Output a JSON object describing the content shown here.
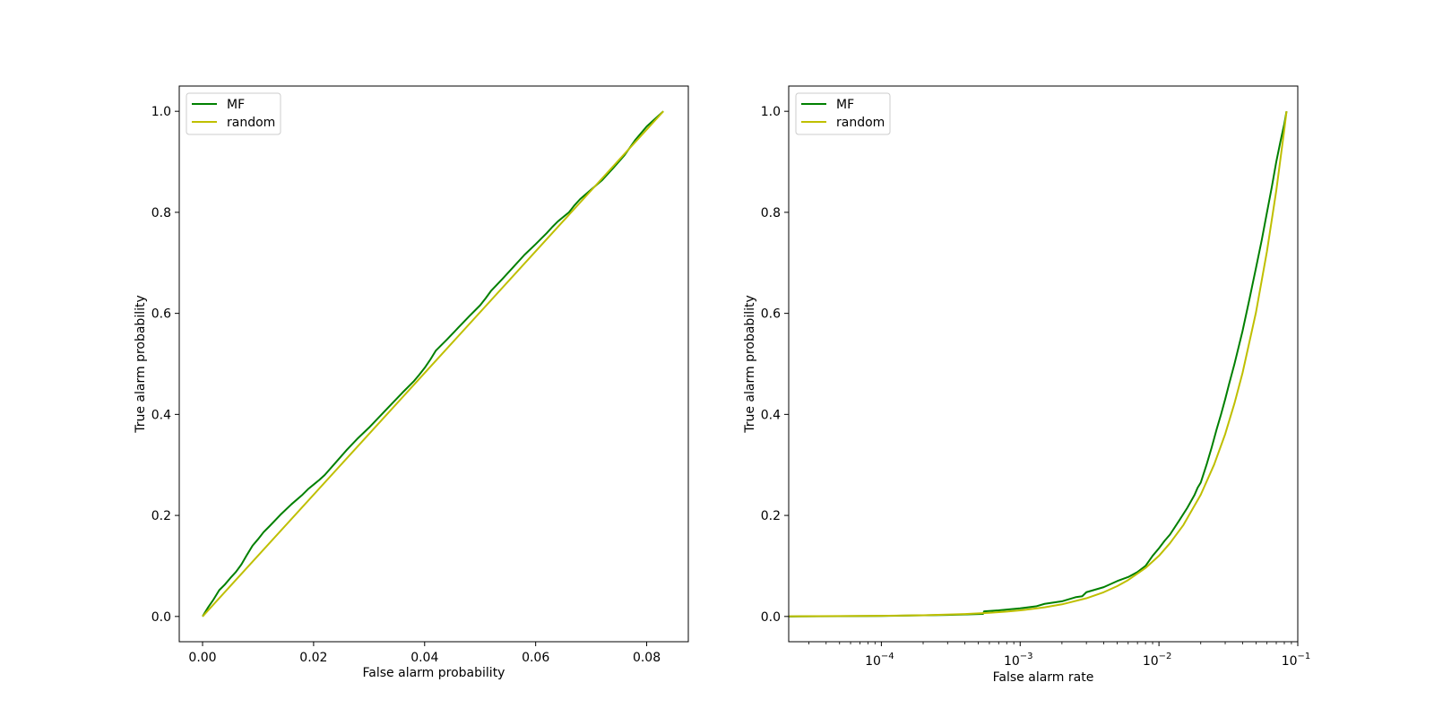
{
  "chart_data": [
    {
      "type": "line",
      "xlabel": "False alarm probability",
      "ylabel": "True alarm probability",
      "xscale": "linear",
      "xlim": [
        -0.0042,
        0.0875
      ],
      "ylim": [
        -0.05,
        1.05
      ],
      "xticks": [
        0.0,
        0.02,
        0.04,
        0.06,
        0.08
      ],
      "xtick_labels": [
        "0.00",
        "0.02",
        "0.04",
        "0.06",
        "0.08"
      ],
      "yticks": [
        0.0,
        0.2,
        0.4,
        0.6,
        0.8,
        1.0
      ],
      "ytick_labels": [
        "0.0",
        "0.2",
        "0.4",
        "0.6",
        "0.8",
        "1.0"
      ],
      "legend": "upper-left",
      "grid": false,
      "series": [
        {
          "name": "MF",
          "color": "#008000",
          "x": [
            0.0,
            0.001,
            0.002,
            0.003,
            0.004,
            0.005,
            0.006,
            0.007,
            0.008,
            0.009,
            0.01,
            0.011,
            0.012,
            0.014,
            0.016,
            0.018,
            0.019,
            0.02,
            0.021,
            0.022,
            0.024,
            0.026,
            0.028,
            0.03,
            0.032,
            0.034,
            0.036,
            0.038,
            0.039,
            0.04,
            0.041,
            0.042,
            0.044,
            0.046,
            0.048,
            0.05,
            0.051,
            0.052,
            0.054,
            0.056,
            0.058,
            0.06,
            0.062,
            0.063,
            0.064,
            0.066,
            0.067,
            0.068,
            0.07,
            0.072,
            0.074,
            0.076,
            0.078,
            0.08,
            0.083
          ],
          "y": [
            0.0,
            0.018,
            0.034,
            0.052,
            0.063,
            0.076,
            0.088,
            0.103,
            0.122,
            0.14,
            0.153,
            0.167,
            0.178,
            0.201,
            0.222,
            0.241,
            0.252,
            0.261,
            0.27,
            0.28,
            0.305,
            0.33,
            0.353,
            0.374,
            0.397,
            0.42,
            0.443,
            0.465,
            0.478,
            0.492,
            0.508,
            0.526,
            0.548,
            0.571,
            0.594,
            0.616,
            0.63,
            0.645,
            0.668,
            0.692,
            0.716,
            0.737,
            0.759,
            0.771,
            0.782,
            0.8,
            0.814,
            0.826,
            0.845,
            0.864,
            0.888,
            0.913,
            0.944,
            0.97,
            1.0
          ]
        },
        {
          "name": "random",
          "color": "#bfbf00",
          "x": [
            0.0,
            0.083
          ],
          "y": [
            0.0,
            1.0
          ]
        }
      ]
    },
    {
      "type": "line",
      "xlabel": "False alarm rate",
      "ylabel": "True alarm probability",
      "xscale": "log",
      "xlim": [
        2.15e-05,
        0.1
      ],
      "ylim": [
        -0.05,
        1.05
      ],
      "xticks": [
        0.0001,
        0.001,
        0.01,
        0.1
      ],
      "xtick_labels": [
        [
          "10",
          "−4"
        ],
        [
          "10",
          "−3"
        ],
        [
          "10",
          "−2"
        ],
        [
          "10",
          "−1"
        ]
      ],
      "yticks": [
        0.0,
        0.2,
        0.4,
        0.6,
        0.8,
        1.0
      ],
      "ytick_labels": [
        "0.0",
        "0.2",
        "0.4",
        "0.6",
        "0.8",
        "1.0"
      ],
      "legend": "upper-left",
      "grid": false,
      "series": [
        {
          "name": "MF",
          "color": "#008000",
          "x": [
            2.15e-05,
            0.0001,
            0.0003,
            0.00054,
            0.00055,
            0.0007,
            0.001,
            0.0013,
            0.0015,
            0.002,
            0.0025,
            0.0028,
            0.003,
            0.004,
            0.005,
            0.006,
            0.007,
            0.008,
            0.009,
            0.01,
            0.011,
            0.012,
            0.014,
            0.016,
            0.018,
            0.019,
            0.02,
            0.022,
            0.024,
            0.026,
            0.028,
            0.03,
            0.032,
            0.035,
            0.04,
            0.045,
            0.05,
            0.055,
            0.06,
            0.065,
            0.07,
            0.075,
            0.08,
            0.083
          ],
          "y": [
            0.0,
            0.001,
            0.003,
            0.005,
            0.01,
            0.012,
            0.016,
            0.02,
            0.025,
            0.03,
            0.038,
            0.04,
            0.048,
            0.058,
            0.07,
            0.078,
            0.088,
            0.1,
            0.12,
            0.135,
            0.15,
            0.162,
            0.19,
            0.215,
            0.24,
            0.255,
            0.265,
            0.3,
            0.335,
            0.37,
            0.4,
            0.43,
            0.46,
            0.5,
            0.565,
            0.63,
            0.69,
            0.745,
            0.8,
            0.85,
            0.9,
            0.94,
            0.975,
            1.0
          ]
        },
        {
          "name": "random",
          "color": "#bfbf00",
          "x": [
            2.15e-05,
            0.0001,
            0.0002,
            0.0004,
            0.0006,
            0.0008,
            0.001,
            0.0015,
            0.002,
            0.003,
            0.004,
            0.005,
            0.006,
            0.008,
            0.01,
            0.012,
            0.015,
            0.02,
            0.025,
            0.03,
            0.035,
            0.04,
            0.05,
            0.06,
            0.07,
            0.08,
            0.083
          ],
          "y": [
            0.00026,
            0.0012,
            0.0024,
            0.0048,
            0.0072,
            0.0096,
            0.012,
            0.018,
            0.024,
            0.036,
            0.048,
            0.06,
            0.072,
            0.096,
            0.12,
            0.145,
            0.181,
            0.241,
            0.301,
            0.361,
            0.422,
            0.482,
            0.602,
            0.723,
            0.843,
            0.964,
            1.0
          ]
        }
      ]
    }
  ]
}
